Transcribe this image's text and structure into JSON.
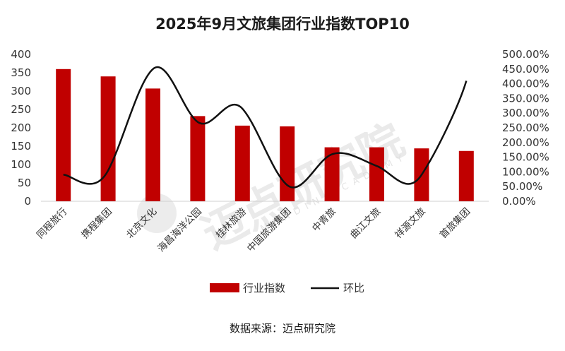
{
  "chart_data": {
    "type": "bar",
    "title": "2025年9月文旅集团行业指数TOP10",
    "categories": [
      "同程旅行",
      "携程集团",
      "北京文化",
      "海昌海洋公园",
      "桂林旅游",
      "中国旅游集团",
      "中青旅",
      "曲江文旅",
      "祥源文旅",
      "首旅集团"
    ],
    "series": [
      {
        "name": "行业指数",
        "type": "bar",
        "axis": "left",
        "color": "#c00000",
        "values": [
          360,
          340,
          307,
          232,
          206,
          204,
          147,
          147,
          144,
          137
        ]
      },
      {
        "name": "环比",
        "type": "line",
        "axis": "right",
        "color": "#111111",
        "values": [
          90,
          105,
          450,
          270,
          315,
          55,
          160,
          120,
          90,
          410
        ]
      }
    ],
    "y_left": {
      "min": 0,
      "max": 400,
      "ticks": [
        "0",
        "50",
        "100",
        "150",
        "200",
        "250",
        "300",
        "350",
        "400"
      ]
    },
    "y_right": {
      "min": 0,
      "max": 500,
      "ticks": [
        "0.00%",
        "50.00%",
        "100.00%",
        "150.00%",
        "200.00%",
        "250.00%",
        "300.00%",
        "350.00%",
        "400.00%",
        "450.00%",
        "500.00%"
      ]
    },
    "legend": {
      "placement": "bottom",
      "items": [
        "行业指数",
        "环比"
      ]
    },
    "watermark": {
      "text": "迈点研究院",
      "subtext": "MEADIN ACADEMY"
    },
    "source": "数据来源：迈点研究院"
  }
}
